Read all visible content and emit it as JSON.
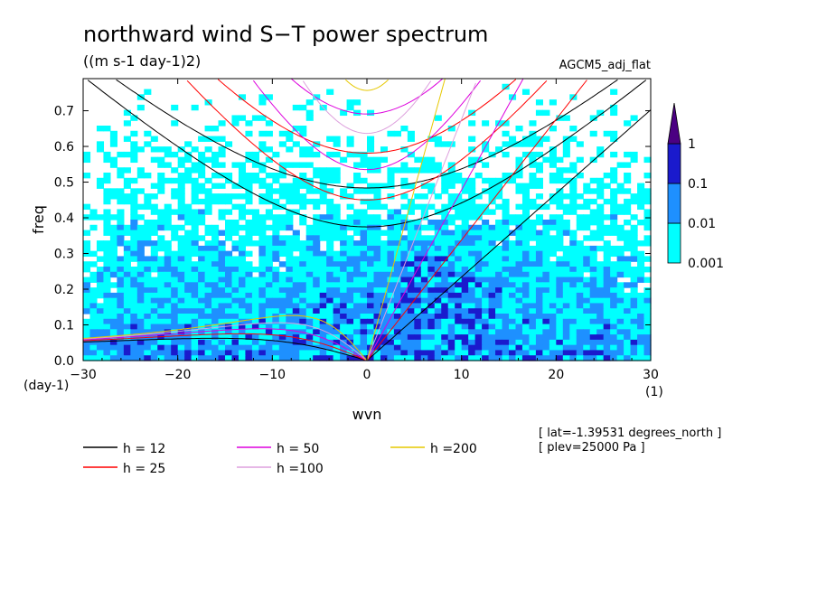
{
  "chart_data": {
    "type": "heatmap",
    "title": "northward wind S−T power spectrum",
    "subtitle": "((m s-1 day-1)2)",
    "dataset_label": "AGCM5_adj_flat",
    "xlabel": "wvn",
    "ylabel": "freq",
    "x_unit": "(1)",
    "y_unit": "(day-1)",
    "xlim": [
      -30,
      30
    ],
    "ylim": [
      0,
      0.79
    ],
    "x_ticks": [
      -30,
      -20,
      -10,
      0,
      10,
      20,
      30
    ],
    "x_tick_labels": [
      "−30",
      "−20",
      "−10",
      "0",
      "10",
      "20",
      "30"
    ],
    "y_ticks": [
      0.0,
      0.1,
      0.2,
      0.3,
      0.4,
      0.5,
      0.6,
      0.7
    ],
    "y_tick_labels": [
      "0.0",
      "0.1",
      "0.2",
      "0.3",
      "0.4",
      "0.5",
      "0.6",
      "0.7"
    ],
    "colorbar": {
      "levels": [
        0.001,
        0.01,
        0.1,
        1
      ],
      "labels": [
        "0.001",
        "0.01",
        "0.1",
        "1"
      ],
      "colors": [
        "#00ffff",
        "#1e90ff",
        "#1a1acd",
        "#4b0082"
      ]
    },
    "dispersion_curves": [
      {
        "label": "h = 12",
        "h": 12,
        "color": "#000000"
      },
      {
        "label": "h = 25",
        "h": 25,
        "color": "#ff0000"
      },
      {
        "label": "h = 50",
        "h": 50,
        "color": "#dd00dd"
      },
      {
        "label": "h =100",
        "h": 100,
        "color": "#dda0dd"
      },
      {
        "label": "h =200",
        "h": 200,
        "color": "#e6c800"
      }
    ],
    "notes": [
      "[ lat=-1.39531 degrees_north ]",
      "[ plev=25000 Pa ]"
    ]
  }
}
